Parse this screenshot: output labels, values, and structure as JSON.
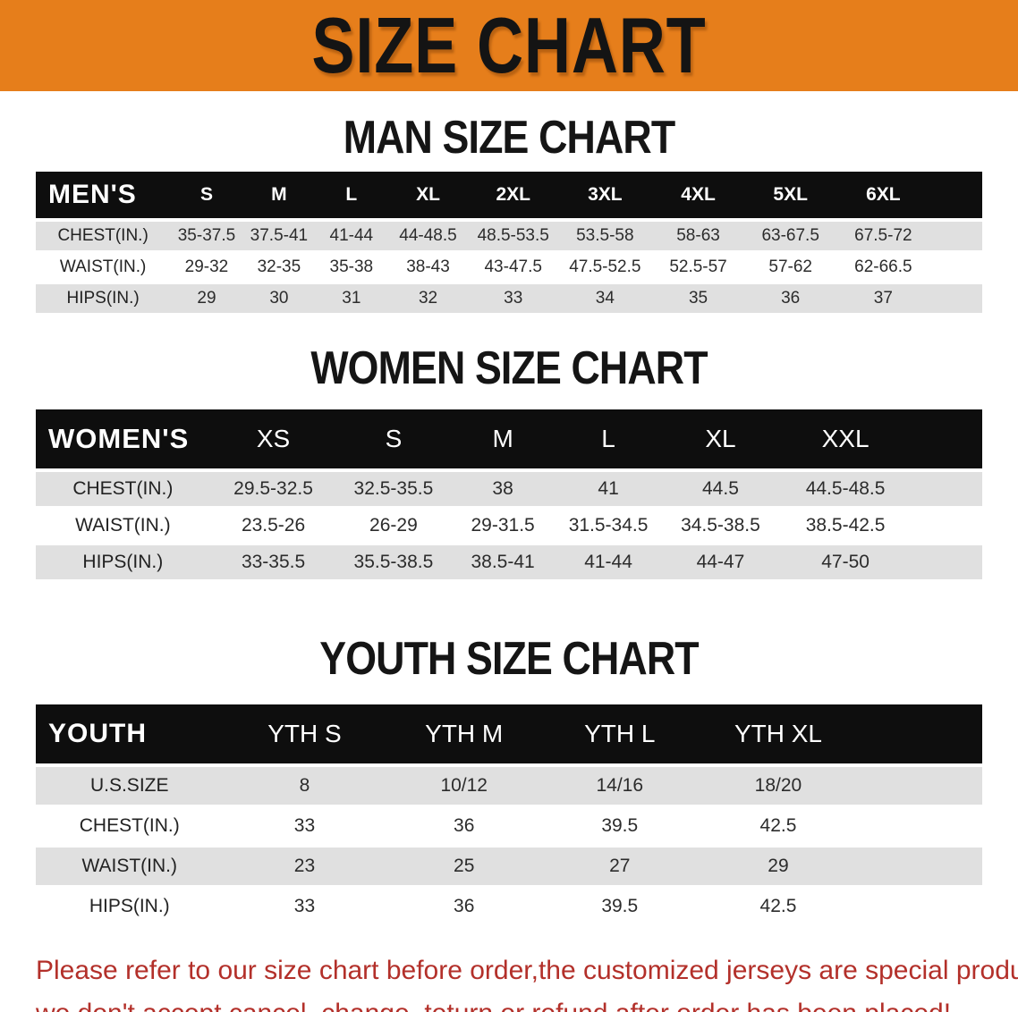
{
  "banner": {
    "title": "SIZE CHART"
  },
  "sections": [
    {
      "heading": "MAN SIZE CHART",
      "table": {
        "group_label": "MEN'S",
        "sizes": [
          "S",
          "M",
          "L",
          "XL",
          "2XL",
          "3XL",
          "4XL",
          "5XL",
          "6XL"
        ],
        "rows": [
          {
            "label": "CHEST(IN.)",
            "values": [
              "35-37.5",
              "37.5-41",
              "41-44",
              "44-48.5",
              "48.5-53.5",
              "53.5-58",
              "58-63",
              "63-67.5",
              "67.5-72"
            ]
          },
          {
            "label": "WAIST(IN.)",
            "values": [
              "29-32",
              "32-35",
              "35-38",
              "38-43",
              "43-47.5",
              "47.5-52.5",
              "52.5-57",
              "57-62",
              "62-66.5"
            ]
          },
          {
            "label": "HIPS(IN.)",
            "values": [
              "29",
              "30",
              "31",
              "32",
              "33",
              "34",
              "35",
              "36",
              "37"
            ]
          }
        ]
      }
    },
    {
      "heading": "WOMEN SIZE CHART",
      "table": {
        "group_label": "WOMEN'S",
        "sizes": [
          "XS",
          "S",
          "M",
          "L",
          "XL",
          "XXL"
        ],
        "rows": [
          {
            "label": "CHEST(IN.)",
            "values": [
              "29.5-32.5",
              "32.5-35.5",
              "38",
              "41",
              "44.5",
              "44.5-48.5"
            ]
          },
          {
            "label": "WAIST(IN.)",
            "values": [
              "23.5-26",
              "26-29",
              "29-31.5",
              "31.5-34.5",
              "34.5-38.5",
              "38.5-42.5"
            ]
          },
          {
            "label": "HIPS(IN.)",
            "values": [
              "33-35.5",
              "35.5-38.5",
              "38.5-41",
              "41-44",
              "44-47",
              "47-50"
            ]
          }
        ]
      }
    },
    {
      "heading": "YOUTH SIZE CHART",
      "table": {
        "group_label": "YOUTH",
        "sizes": [
          "YTH S",
          "YTH M",
          "YTH L",
          "YTH XL"
        ],
        "rows": [
          {
            "label": "U.S.SIZE",
            "values": [
              "8",
              "10/12",
              "14/16",
              "18/20"
            ]
          },
          {
            "label": "CHEST(IN.)",
            "values": [
              "33",
              "36",
              "39.5",
              "42.5"
            ]
          },
          {
            "label": "WAIST(IN.)",
            "values": [
              "23",
              "25",
              "27",
              "29"
            ]
          },
          {
            "label": "HIPS(IN.)",
            "values": [
              "33",
              "36",
              "39.5",
              "42.5"
            ]
          }
        ]
      }
    }
  ],
  "disclaimer": {
    "line1": "Please refer to our size chart before order,the customized jerseys are special products,",
    "line2": "we don't accept cancel, change, teturn or refund after order has been placed!"
  },
  "colors": {
    "banner_bg": "#e67e1b",
    "header_band": "#0e0e0e",
    "row_stripe": "#e0e0e0",
    "disclaimer_text": "#b3302a"
  }
}
